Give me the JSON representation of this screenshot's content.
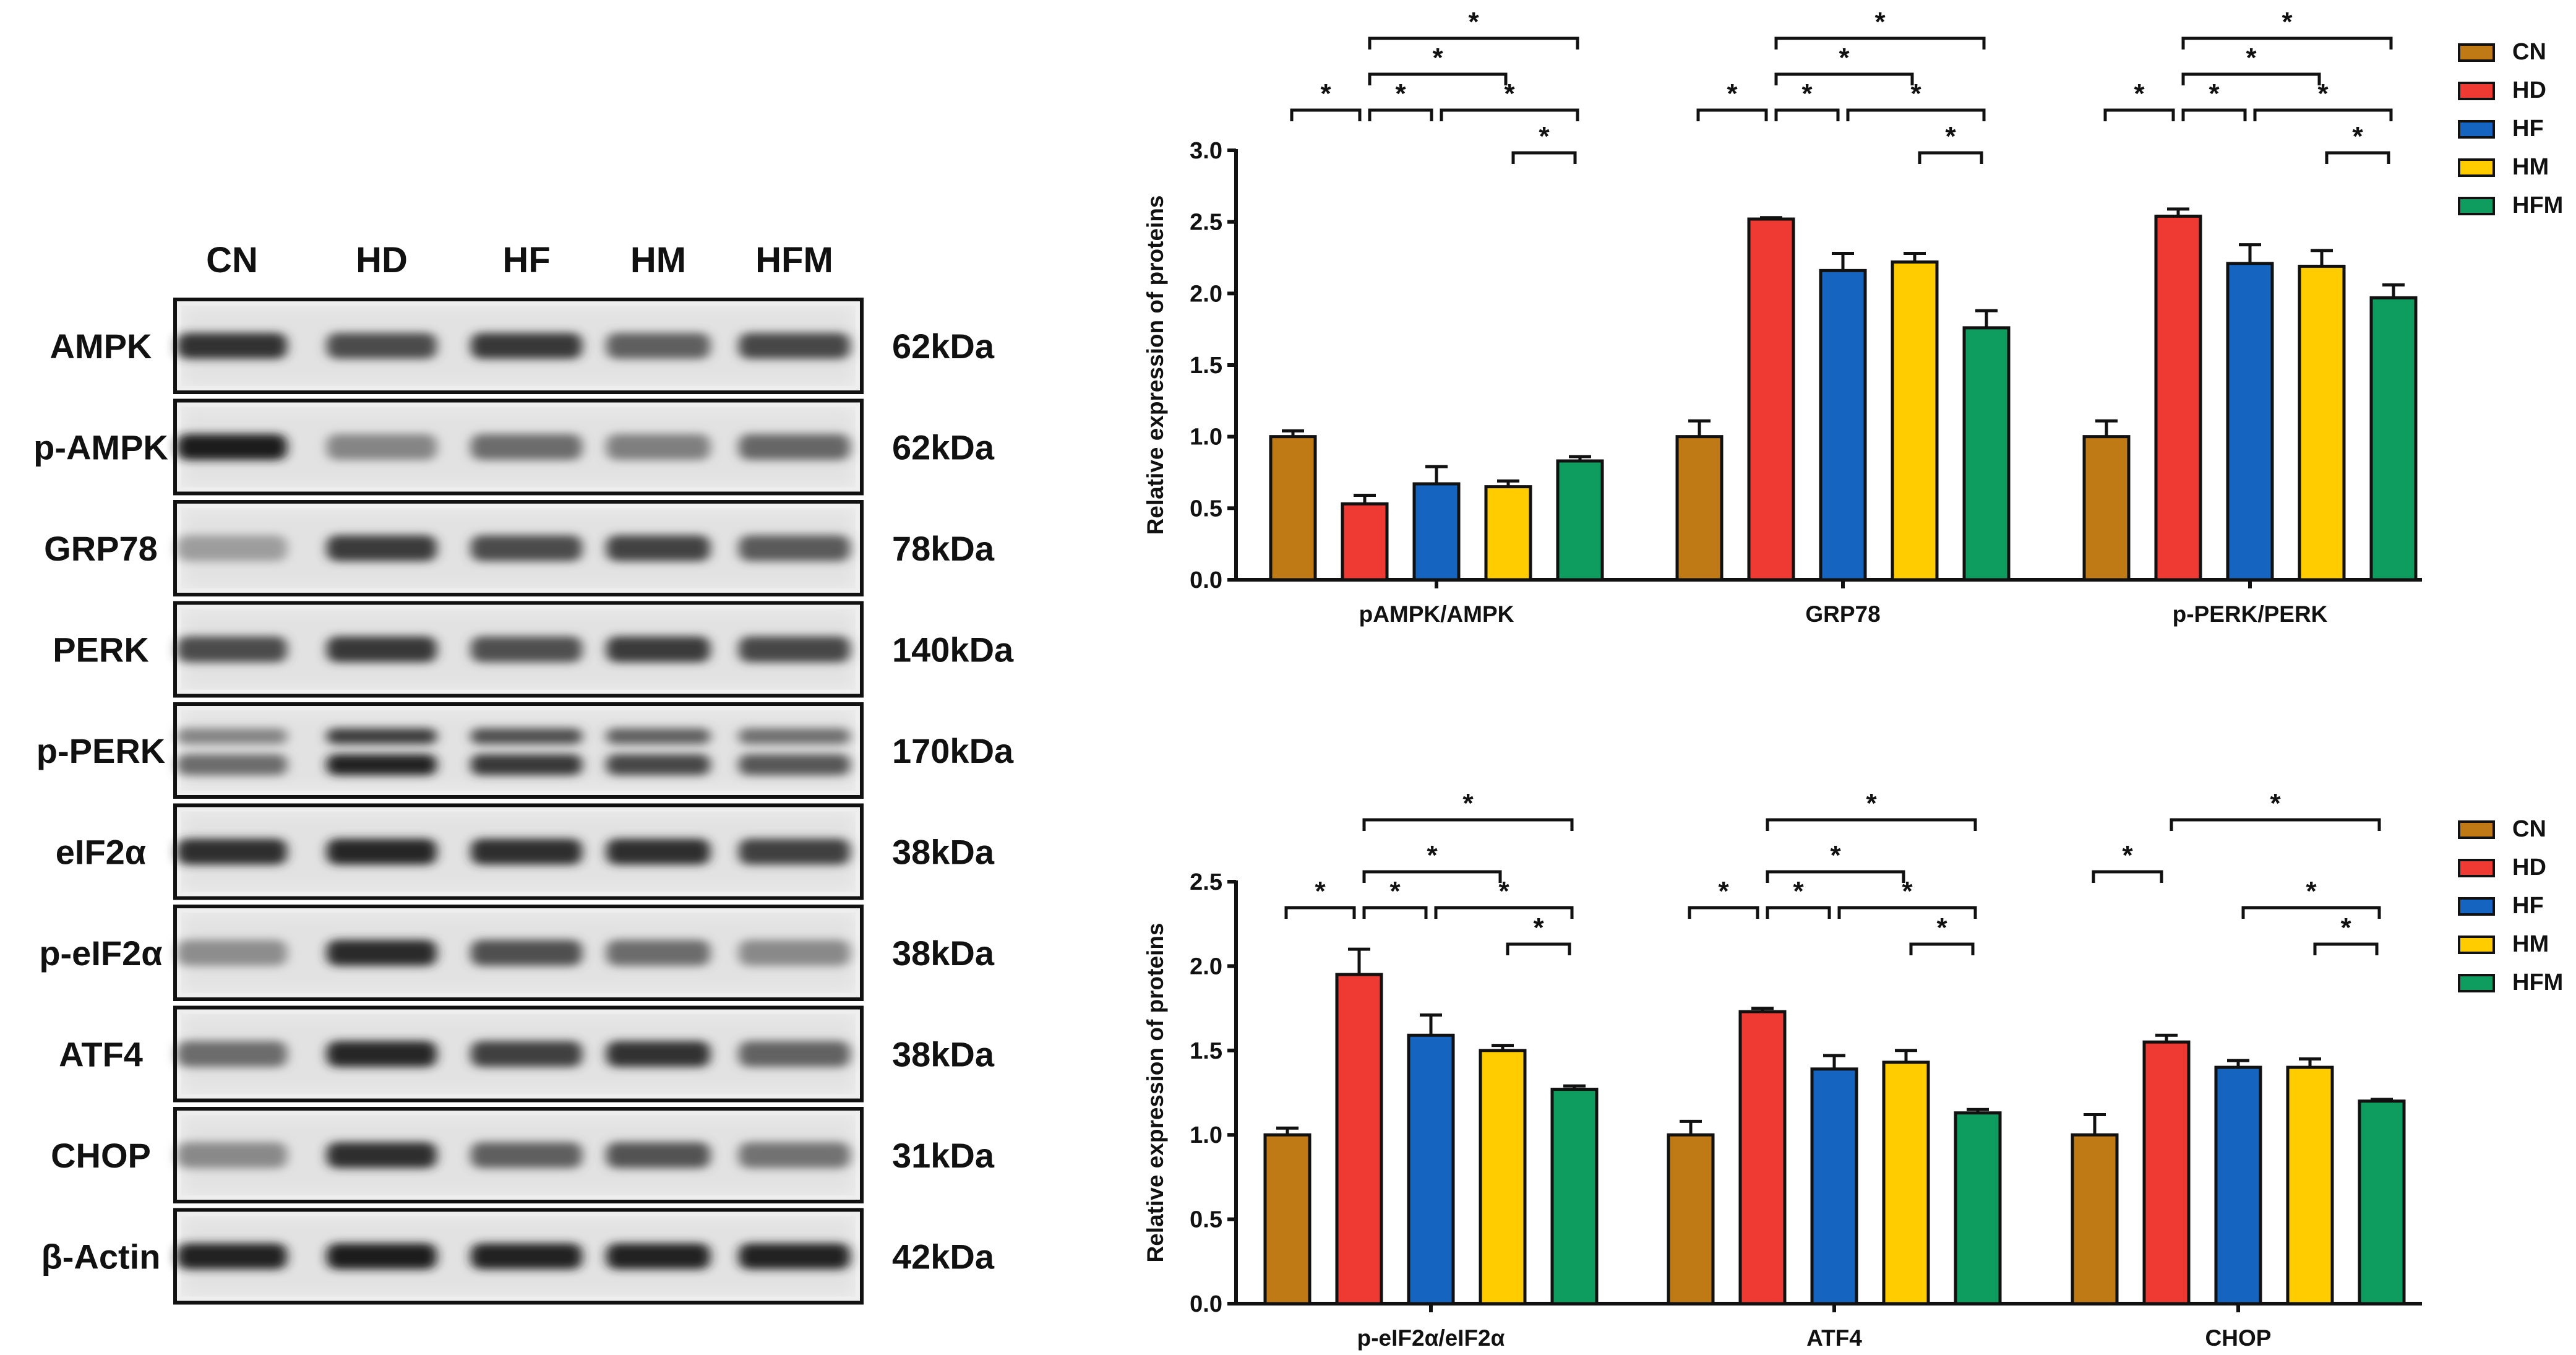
{
  "blot": {
    "lanes": [
      "CN",
      "HD",
      "HF",
      "HM",
      "HFM"
    ],
    "rows": [
      {
        "protein": "AMPK",
        "size": "62kDa",
        "intensity": [
          0.85,
          0.72,
          0.82,
          0.62,
          0.74
        ],
        "double": false
      },
      {
        "protein": "p-AMPK",
        "size": "62kDa",
        "intensity": [
          0.95,
          0.42,
          0.55,
          0.45,
          0.58
        ],
        "double": false
      },
      {
        "protein": "GRP78",
        "size": "78kDa",
        "intensity": [
          0.3,
          0.8,
          0.72,
          0.76,
          0.64
        ],
        "double": false
      },
      {
        "protein": "PERK",
        "size": "140kDa",
        "intensity": [
          0.72,
          0.82,
          0.7,
          0.8,
          0.74
        ],
        "double": false
      },
      {
        "protein": "p-PERK",
        "size": "170kDa",
        "intensity": [
          0.55,
          0.92,
          0.82,
          0.74,
          0.66
        ],
        "double": true
      },
      {
        "protein": "eIF2α",
        "size": "38kDa",
        "intensity": [
          0.86,
          0.9,
          0.86,
          0.86,
          0.78
        ],
        "double": false
      },
      {
        "protein": "p-eIF2α",
        "size": "38kDa",
        "intensity": [
          0.38,
          0.88,
          0.7,
          0.55,
          0.4
        ],
        "double": false
      },
      {
        "protein": "ATF4",
        "size": "38kDa",
        "intensity": [
          0.55,
          0.9,
          0.78,
          0.85,
          0.6
        ],
        "double": false
      },
      {
        "protein": "CHOP",
        "size": "31kDa",
        "intensity": [
          0.4,
          0.86,
          0.62,
          0.68,
          0.52
        ],
        "double": false
      },
      {
        "protein": "β-Actin",
        "size": "42kDa",
        "intensity": [
          0.92,
          0.95,
          0.93,
          0.93,
          0.92
        ],
        "double": false
      }
    ]
  },
  "colors": {
    "CN": "#C07A15",
    "HD": "#EE3A33",
    "HF": "#1565C0",
    "HM": "#FFCC00",
    "HFM": "#0E9D5E"
  },
  "chart_data": [
    {
      "type": "bar",
      "ylabel": "Relative expression of proteins",
      "ylim": [
        0,
        3.0
      ],
      "yticks": [
        "0.0",
        "0.5",
        "1.0",
        "1.5",
        "2.0",
        "2.5",
        "3.0"
      ],
      "legend": [
        "CN",
        "HD",
        "HF",
        "HM",
        "HFM"
      ],
      "legend_position": "top-right",
      "groups": [
        {
          "label": "pAMPK/AMPK",
          "values": [
            1.0,
            0.53,
            0.67,
            0.65,
            0.83
          ],
          "errors": [
            0.04,
            0.06,
            0.12,
            0.04,
            0.03
          ],
          "sig": [
            [
              0,
              1,
              1
            ],
            [
              1,
              2,
              1
            ],
            [
              2,
              4,
              1
            ],
            [
              3,
              4,
              0
            ],
            [
              1,
              3,
              2
            ],
            [
              1,
              4,
              3
            ]
          ],
          "sig_label": "*"
        },
        {
          "label": "GRP78",
          "values": [
            1.0,
            2.52,
            2.16,
            2.22,
            1.76
          ],
          "errors": [
            0.11,
            0.01,
            0.12,
            0.06,
            0.12
          ],
          "sig": [
            [
              0,
              1,
              1
            ],
            [
              1,
              2,
              1
            ],
            [
              2,
              4,
              1
            ],
            [
              3,
              4,
              0
            ],
            [
              1,
              3,
              2
            ],
            [
              1,
              4,
              3
            ]
          ],
          "sig_label": "*"
        },
        {
          "label": "p-PERK/PERK",
          "values": [
            1.0,
            2.54,
            2.21,
            2.19,
            1.97
          ],
          "errors": [
            0.11,
            0.05,
            0.13,
            0.11,
            0.09
          ],
          "sig": [
            [
              0,
              1,
              1
            ],
            [
              1,
              2,
              1
            ],
            [
              2,
              4,
              1
            ],
            [
              3,
              4,
              0
            ],
            [
              1,
              3,
              2
            ],
            [
              1,
              4,
              3
            ]
          ],
          "sig_label": "*"
        }
      ]
    },
    {
      "type": "bar",
      "ylabel": "Relative expression of proteins",
      "ylim": [
        0,
        2.5
      ],
      "yticks": [
        "0.0",
        "0.5",
        "1.0",
        "1.5",
        "2.0",
        "2.5"
      ],
      "legend": [
        "CN",
        "HD",
        "HF",
        "HM",
        "HFM"
      ],
      "legend_position": "top-right",
      "groups": [
        {
          "label": "p-eIF2α/eIF2α",
          "values": [
            1.0,
            1.95,
            1.59,
            1.5,
            1.27
          ],
          "errors": [
            0.04,
            0.15,
            0.12,
            0.03,
            0.02
          ],
          "sig": [
            [
              0,
              1,
              1
            ],
            [
              1,
              2,
              1
            ],
            [
              2,
              4,
              1
            ],
            [
              3,
              4,
              0
            ],
            [
              1,
              3,
              2
            ],
            [
              1,
              4,
              3
            ]
          ],
          "sig_label": "*"
        },
        {
          "label": "ATF4",
          "values": [
            1.0,
            1.73,
            1.39,
            1.43,
            1.13
          ],
          "errors": [
            0.08,
            0.02,
            0.08,
            0.07,
            0.02
          ],
          "sig": [
            [
              0,
              1,
              1
            ],
            [
              1,
              2,
              1
            ],
            [
              2,
              4,
              1
            ],
            [
              3,
              4,
              0
            ],
            [
              1,
              3,
              2
            ],
            [
              1,
              4,
              3
            ]
          ],
          "sig_label": "*"
        },
        {
          "label": "CHOP",
          "values": [
            1.0,
            1.55,
            1.4,
            1.4,
            1.2
          ],
          "errors": [
            0.12,
            0.04,
            0.04,
            0.05,
            0.01
          ],
          "sig": [
            [
              0,
              1,
              2
            ],
            [
              2,
              4,
              1
            ],
            [
              3,
              4,
              0
            ],
            [
              1,
              4,
              3
            ]
          ],
          "sig_label": "*"
        }
      ]
    }
  ]
}
